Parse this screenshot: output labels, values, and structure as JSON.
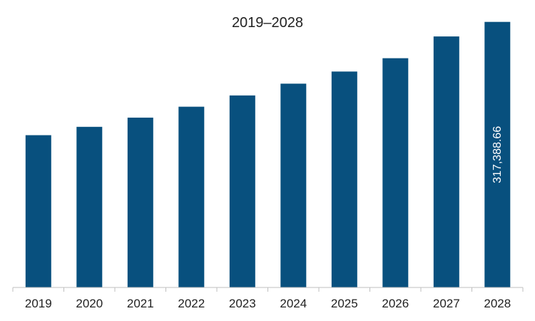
{
  "chart_data": {
    "type": "bar",
    "title": "2019–2028",
    "xlabel": "",
    "ylabel": "",
    "categories": [
      "2019",
      "2020",
      "2021",
      "2022",
      "2023",
      "2024",
      "2025",
      "2026",
      "2027",
      "2028"
    ],
    "values": [
      182000,
      192000,
      203000,
      216000,
      229500,
      243500,
      258000,
      274000,
      300000,
      317388.66
    ],
    "data_labels": [
      "",
      "",
      "",
      "",
      "",
      "",
      "",
      "",
      "",
      "317,388.66"
    ],
    "ylim": [
      0,
      335000
    ],
    "grid": false,
    "bar_color": "#08507e",
    "axis_color": "#bfbfbf"
  }
}
